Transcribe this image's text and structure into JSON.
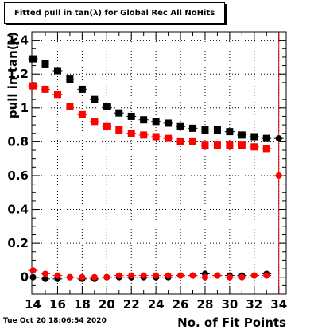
{
  "title": "Fitted pull in tan(λ) for Global Rec All NoHits",
  "timestamp": "Tue Oct 20 18:06:54 2020",
  "chart_data": {
    "type": "scatter",
    "xlabel": "No. of Fit Points",
    "ylabel": "pull in tan(λ)",
    "xlim": [
      13.9,
      34.6
    ],
    "ylim": [
      -0.1,
      1.45
    ],
    "xticks": [
      "14",
      "16",
      "18",
      "20",
      "22",
      "24",
      "26",
      "28",
      "30",
      "32",
      "34"
    ],
    "yticks": [
      "0",
      "0.2",
      "0.4",
      "0.6",
      "0.8",
      "1",
      "1.2",
      "1.4"
    ],
    "grid": true,
    "series": [
      {
        "color": "#000000",
        "marker": "square",
        "x": [
          14,
          15,
          16,
          17,
          18,
          19,
          20,
          21,
          22,
          23,
          24,
          25,
          26,
          27,
          28,
          29,
          30,
          31,
          32,
          33
        ],
        "y": [
          1.29,
          1.26,
          1.22,
          1.17,
          1.11,
          1.05,
          1.01,
          0.97,
          0.95,
          0.93,
          0.92,
          0.91,
          0.89,
          0.88,
          0.87,
          0.87,
          0.86,
          0.84,
          0.83,
          0.82
        ]
      },
      {
        "color": "#ff0000",
        "marker": "square",
        "x": [
          14,
          15,
          16,
          17,
          18,
          19,
          20,
          21,
          22,
          23,
          24,
          25,
          26,
          27,
          28,
          29,
          30,
          31,
          32,
          33
        ],
        "y": [
          1.13,
          1.11,
          1.08,
          1.01,
          0.96,
          0.92,
          0.89,
          0.87,
          0.85,
          0.84,
          0.83,
          0.82,
          0.8,
          0.8,
          0.78,
          0.78,
          0.78,
          0.78,
          0.77,
          0.76
        ]
      },
      {
        "color": "#000000",
        "marker": "circle",
        "x": [
          14,
          15,
          16,
          17,
          18,
          19,
          20,
          21,
          22,
          23,
          24,
          25,
          26,
          27,
          28,
          29,
          30,
          31,
          32,
          33
        ],
        "y": [
          0.0,
          -0.01,
          -0.01,
          0.0,
          -0.01,
          -0.01,
          0.0,
          0.0,
          0.0,
          0.0,
          0.0,
          0.0,
          0.01,
          0.01,
          0.02,
          0.01,
          0.01,
          0.01,
          0.01,
          0.02
        ]
      },
      {
        "color": "#ff0000",
        "marker": "circle",
        "x": [
          14,
          15,
          16,
          17,
          18,
          19,
          20,
          21,
          22,
          23,
          24,
          25,
          26,
          27,
          28,
          29,
          30,
          31,
          32,
          33
        ],
        "y": [
          0.04,
          0.02,
          0.01,
          0.0,
          0.0,
          0.0,
          0.0,
          0.01,
          0.01,
          0.01,
          0.01,
          0.01,
          0.01,
          0.01,
          0.0,
          0.01,
          0.0,
          0.0,
          0.01,
          0.01
        ]
      }
    ],
    "extra_points": [
      {
        "color": "#000000",
        "marker": "circle",
        "x": 34,
        "y": 0.82
      },
      {
        "color": "#ff0000",
        "marker": "circle",
        "x": 34,
        "y": 0.6
      }
    ],
    "vertical_line": {
      "x": 34,
      "color": "#cc0000"
    }
  }
}
